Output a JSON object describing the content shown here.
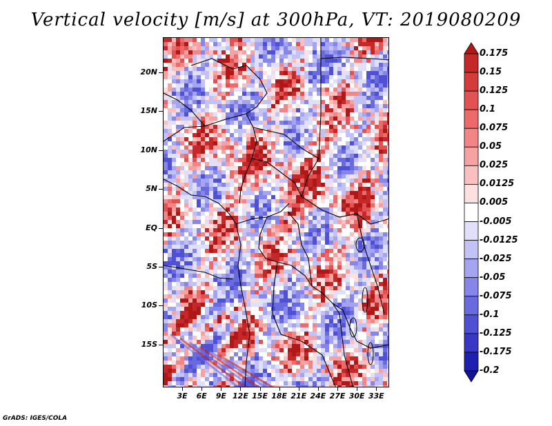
{
  "title": "Vertical velocity [m/s] at 300hPa, VT: 2019080209",
  "credit": "GrADS: IGES/COLA",
  "map": {
    "lat_range": [
      -20.5,
      24.5
    ],
    "lon_range": [
      0,
      35
    ],
    "lat_labels": [
      "20N",
      "15N",
      "10N",
      "5N",
      "EQ",
      "5S",
      "10S",
      "15S"
    ],
    "lat_values": [
      20,
      15,
      10,
      5,
      0,
      -5,
      -10,
      -15
    ],
    "lon_labels": [
      "3E",
      "6E",
      "9E",
      "12E",
      "15E",
      "18E",
      "21E",
      "24E",
      "27E",
      "30E",
      "33E"
    ],
    "lon_values": [
      3,
      6,
      9,
      12,
      15,
      18,
      21,
      24,
      27,
      30,
      33
    ]
  },
  "colorbar": {
    "labels": [
      "0.175",
      "0.15",
      "0.125",
      "0.1",
      "0.075",
      "0.05",
      "0.025",
      "0.0125",
      "0.005",
      "-0.005",
      "-0.0125",
      "-0.025",
      "-0.05",
      "-0.075",
      "-0.1",
      "-0.125",
      "-0.175",
      "-0.2"
    ],
    "colors": [
      "#b01818",
      "#c42828",
      "#d43c3c",
      "#e25252",
      "#ec6a6a",
      "#f28686",
      "#f6a2a2",
      "#fac0c0",
      "#fde0e0",
      "#ffffff",
      "#e0e0fb",
      "#c2c2f6",
      "#a4a4f1",
      "#8686ea",
      "#6a6ae0",
      "#5050d4",
      "#3838c4",
      "#2020b0",
      "#12129a"
    ]
  }
}
